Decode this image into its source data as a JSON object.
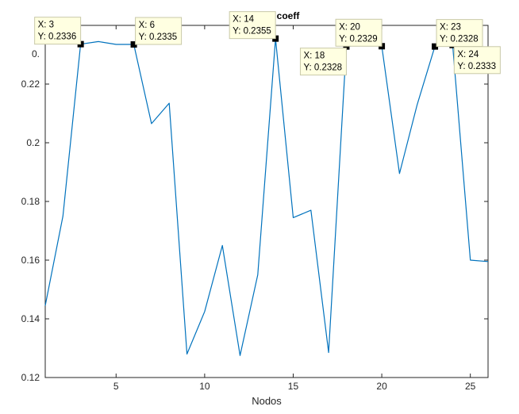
{
  "chart_data": {
    "type": "line",
    "title": "Z rand coeff",
    "xlabel": "Nodos",
    "ylabel": "",
    "xlim": [
      1,
      26
    ],
    "ylim": [
      0.12,
      0.24
    ],
    "xticks": [
      5,
      10,
      15,
      20,
      25
    ],
    "yticks": [
      0.12,
      0.14,
      0.16,
      0.18,
      0.2,
      0.22
    ],
    "ytick_labels": [
      "0.12",
      "0.14",
      "0.16",
      "0.18",
      "0.2",
      "0.22"
    ],
    "grid": false,
    "line_color": "#0072bd",
    "series": [
      {
        "x": [
          1,
          2,
          3,
          4,
          5,
          6,
          7,
          8,
          9,
          10,
          11,
          12,
          13,
          14,
          15,
          16,
          17,
          18,
          19,
          20,
          21,
          22,
          23,
          24,
          25,
          26
        ],
        "y": [
          0.1445,
          0.175,
          0.2336,
          0.2345,
          0.2335,
          0.2335,
          0.2065,
          0.2135,
          0.128,
          0.1425,
          0.165,
          0.1275,
          0.155,
          0.2355,
          0.1745,
          0.177,
          0.1285,
          0.2328,
          0.2335,
          0.2329,
          0.1895,
          0.213,
          0.2328,
          0.2333,
          0.16,
          0.1595
        ]
      }
    ],
    "annotations": [
      {
        "x": 3,
        "y": 0.2336,
        "text_x": "X: 3",
        "text_y": "Y: 0.2336",
        "side": "above-left"
      },
      {
        "x": 6,
        "y": 0.2335,
        "text_x": "X: 6",
        "text_y": "Y: 0.2335",
        "side": "above-right"
      },
      {
        "x": 14,
        "y": 0.2355,
        "text_x": "X: 14",
        "text_y": "Y: 0.2355",
        "side": "above-left"
      },
      {
        "x": 18,
        "y": 0.2328,
        "text_x": "X: 18",
        "text_y": "Y: 0.2328",
        "side": "below-left"
      },
      {
        "x": 20,
        "y": 0.2329,
        "text_x": "X: 20",
        "text_y": "Y: 0.2329",
        "side": "above-left"
      },
      {
        "x": 23,
        "y": 0.2328,
        "text_x": "X: 23",
        "text_y": "Y: 0.2328",
        "side": "above-right"
      },
      {
        "x": 24,
        "y": 0.2333,
        "text_x": "X: 24",
        "text_y": "Y: 0.2333",
        "side": "below-right"
      }
    ],
    "partial_ytick_label": "0."
  }
}
